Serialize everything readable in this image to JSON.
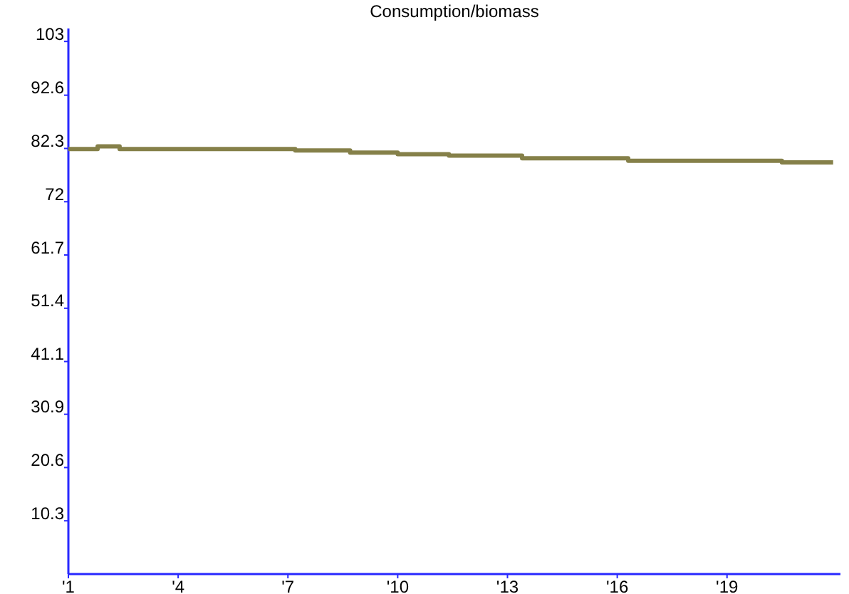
{
  "chart_data": {
    "type": "step",
    "title": "Consumption/biomass",
    "x": [
      1,
      1.8,
      2.4,
      7.2,
      8.7,
      10,
      11.4,
      13.4,
      16.3,
      20.5,
      21.9
    ],
    "series": [
      {
        "color": "#858049",
        "values": [
          82.2,
          82.7,
          82.2,
          81.9,
          81.5,
          81.2,
          80.9,
          80.4,
          79.9,
          79.6,
          79.6
        ]
      }
    ],
    "xlim": [
      1,
      22.1
    ],
    "xticks": [
      {
        "value": 1,
        "label": "'1"
      },
      {
        "value": 4,
        "label": "'4"
      },
      {
        "value": 7,
        "label": "'7"
      },
      {
        "value": 10,
        "label": "'10"
      },
      {
        "value": 13,
        "label": "'13"
      },
      {
        "value": 16,
        "label": "'16"
      },
      {
        "value": 19,
        "label": "'19"
      }
    ],
    "ylim": [
      0,
      105.5
    ],
    "yticks": [
      10.3,
      20.6,
      30.9,
      41.1,
      51.4,
      61.7,
      72,
      82.3,
      92.6,
      103
    ],
    "grid": false
  }
}
